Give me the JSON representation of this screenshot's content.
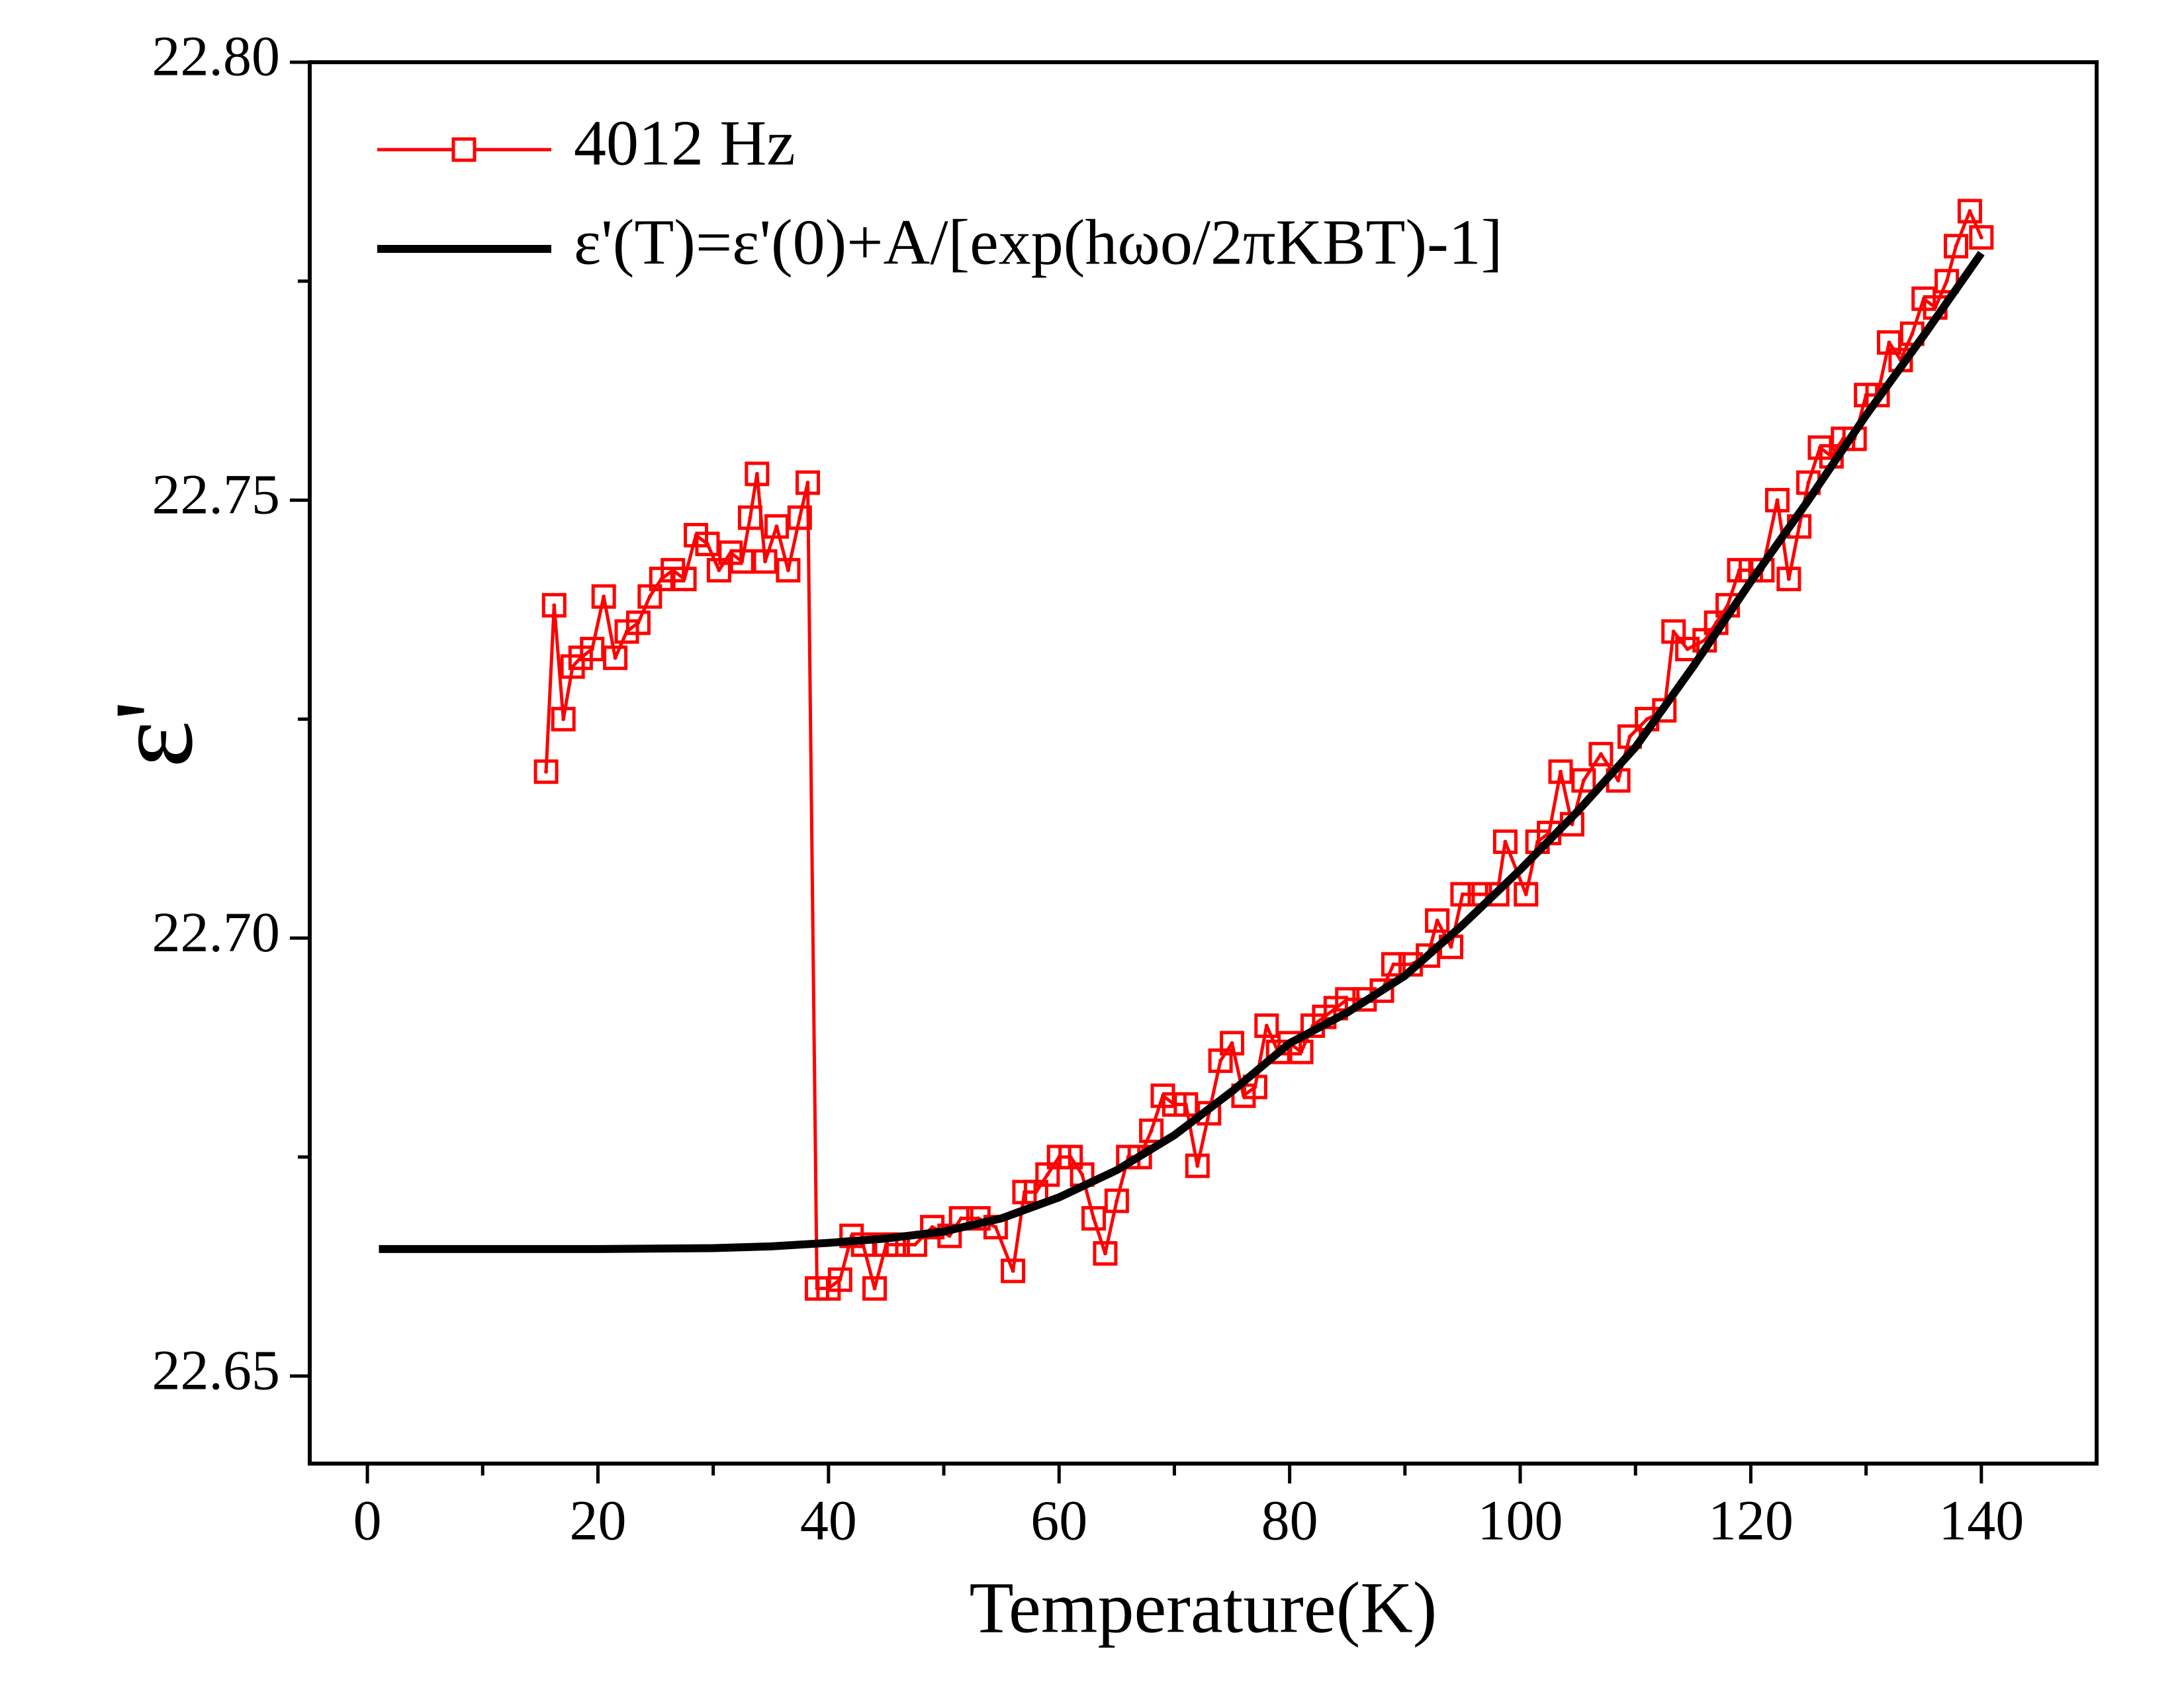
{
  "chart_data": {
    "type": "line",
    "x_label": "Temperature(K)",
    "y_label": "ε'",
    "xlim": [
      -5,
      150
    ],
    "ylim": [
      22.64,
      22.8
    ],
    "xticks": [
      0,
      20,
      40,
      60,
      80,
      100,
      120,
      140
    ],
    "xminorticks": [
      10,
      30,
      50,
      70,
      90,
      110,
      130
    ],
    "yticks": [
      {
        "value": 22.65,
        "label": "22.65"
      },
      {
        "value": 22.7,
        "label": "22.70"
      },
      {
        "value": 22.75,
        "label": "22.75"
      },
      {
        "value": 22.8,
        "label": "22.80"
      }
    ],
    "yminorticks": [
      22.675,
      22.725,
      22.775
    ],
    "series": [
      {
        "name": "4012 Hz",
        "color": "#ff0000",
        "marker": "square",
        "x": [
          15.5,
          16.2,
          17,
          17.8,
          18.5,
          19.5,
          20.5,
          21.5,
          22.5,
          23.5,
          24.5,
          25.5,
          26.5,
          27.5,
          28.5,
          29.5,
          30.5,
          31.5,
          32.5,
          33.2,
          33.8,
          34.5,
          35.5,
          36.5,
          37.5,
          38.2,
          39,
          40,
          41,
          42,
          43,
          44,
          45,
          46,
          47.5,
          49,
          50.5,
          51.5,
          53,
          54.5,
          56,
          57,
          58,
          59,
          60,
          61,
          62,
          63,
          64,
          65,
          66,
          67,
          68,
          69,
          70,
          71,
          72,
          73,
          74,
          75,
          76,
          77,
          78,
          79,
          80,
          81,
          82,
          83,
          84,
          85,
          86.5,
          88,
          89,
          90.5,
          92,
          92.8,
          94,
          95,
          96.5,
          98,
          98.7,
          100.5,
          101.5,
          102.5,
          103.5,
          104.5,
          105.5,
          107,
          108.5,
          109.5,
          111,
          112.5,
          113.3,
          114.5,
          116,
          117,
          118,
          119,
          120,
          121,
          122.3,
          123.3,
          124.2,
          125,
          126,
          127,
          128,
          129,
          130,
          131,
          132,
          133,
          134,
          135,
          136,
          137,
          137.8,
          139,
          140
        ],
        "values": [
          22.719,
          22.738,
          22.725,
          22.731,
          22.732,
          22.733,
          22.739,
          22.732,
          22.735,
          22.736,
          22.739,
          22.741,
          22.742,
          22.741,
          22.746,
          22.745,
          22.742,
          22.744,
          22.743,
          22.748,
          22.753,
          22.743,
          22.747,
          22.742,
          22.748,
          22.752,
          22.66,
          22.66,
          22.661,
          22.666,
          22.665,
          22.66,
          22.665,
          22.665,
          22.665,
          22.667,
          22.666,
          22.668,
          22.668,
          22.667,
          22.662,
          22.671,
          22.671,
          22.673,
          22.675,
          22.675,
          22.673,
          22.668,
          22.664,
          22.67,
          22.675,
          22.675,
          22.678,
          22.682,
          22.681,
          22.681,
          22.674,
          22.68,
          22.686,
          22.688,
          22.682,
          22.683,
          22.69,
          22.687,
          22.688,
          22.687,
          22.69,
          22.691,
          22.692,
          22.693,
          22.693,
          22.694,
          22.697,
          22.697,
          22.698,
          22.702,
          22.699,
          22.705,
          22.705,
          22.705,
          22.711,
          22.705,
          22.711,
          22.712,
          22.719,
          22.713,
          22.718,
          22.721,
          22.718,
          22.723,
          22.725,
          22.726,
          22.735,
          22.733,
          22.734,
          22.736,
          22.738,
          22.742,
          22.742,
          22.742,
          22.75,
          22.741,
          22.747,
          22.752,
          22.756,
          22.755,
          22.757,
          22.757,
          22.762,
          22.762,
          22.768,
          22.766,
          22.769,
          22.773,
          22.772,
          22.775,
          22.779,
          22.783,
          22.78
        ]
      },
      {
        "name": "ε'(T)=ε'(0)+A/[exp(hωo/2πKBT)-1]",
        "color": "#000000",
        "marker": "none",
        "x": [
          1,
          10,
          20,
          30,
          35,
          40,
          45,
          50,
          55,
          60,
          65,
          70,
          75,
          80,
          85,
          90,
          95,
          100,
          105,
          110,
          115,
          120,
          125,
          130,
          135,
          140
        ],
        "values": [
          22.6645,
          22.6645,
          22.6645,
          22.6646,
          22.6648,
          22.6652,
          22.6657,
          22.6665,
          22.668,
          22.6704,
          22.6735,
          22.6775,
          22.6825,
          22.688,
          22.6915,
          22.6957,
          22.7015,
          22.7078,
          22.7145,
          22.7218,
          22.731,
          22.7407,
          22.75,
          22.7597,
          22.7688,
          22.7782
        ]
      }
    ]
  }
}
